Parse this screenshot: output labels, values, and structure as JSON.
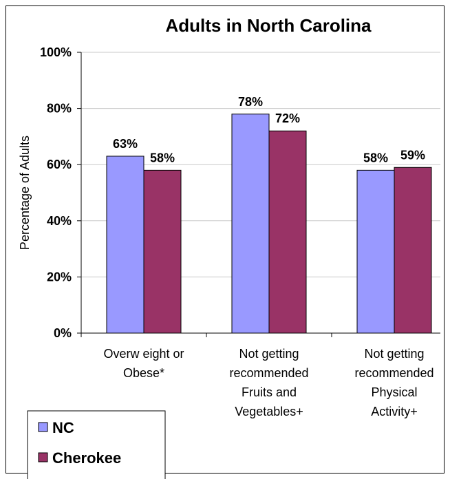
{
  "chart_data": {
    "type": "bar",
    "title": "Adults in North Carolina",
    "ylabel": "Percentage of Adults",
    "xlabel": "",
    "ylim": [
      0,
      100
    ],
    "yticks": [
      "0%",
      "20%",
      "40%",
      "60%",
      "80%",
      "100%"
    ],
    "ytick_values": [
      0,
      20,
      40,
      60,
      80,
      100
    ],
    "categories": [
      [
        "Overw eight or",
        "Obese*"
      ],
      [
        "Not getting",
        "recommended",
        "Fruits and",
        "Vegetables+"
      ],
      [
        "Not getting",
        "recommended",
        "Physical",
        "Activity+"
      ]
    ],
    "series": [
      {
        "name": "NC",
        "color": "#9999ff",
        "values": [
          63,
          78,
          58
        ],
        "labels": [
          "63%",
          "78%",
          "58%"
        ]
      },
      {
        "name": "Cherokee",
        "color": "#993366",
        "values": [
          58,
          72,
          59
        ],
        "labels": [
          "58%",
          "72%",
          "59%"
        ]
      }
    ],
    "grid": true,
    "legend": "bottom-left"
  }
}
